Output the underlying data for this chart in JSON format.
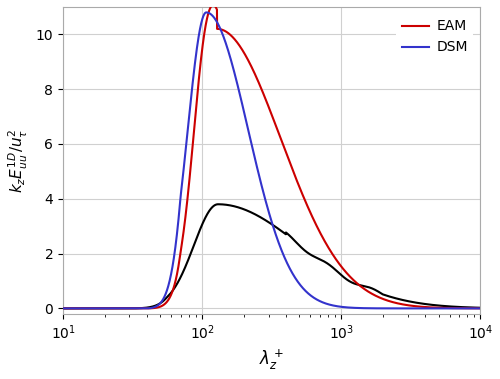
{
  "xlabel": "$\\lambda_z^+$",
  "ylabel": "$k_z E_{uu}^{1D} / u_{\\tau}^2$",
  "xlim": [
    10,
    10000
  ],
  "ylim": [
    -0.2,
    11
  ],
  "yticks": [
    0,
    2,
    4,
    6,
    8,
    10
  ],
  "legend_labels": [
    "EAM",
    "DSM"
  ],
  "eam_color": "#cc0000",
  "dsm_color": "#3333cc",
  "black_color": "#000000",
  "grid_color": "#d0d0d0",
  "background_color": "#ffffff",
  "linewidth": 1.5
}
